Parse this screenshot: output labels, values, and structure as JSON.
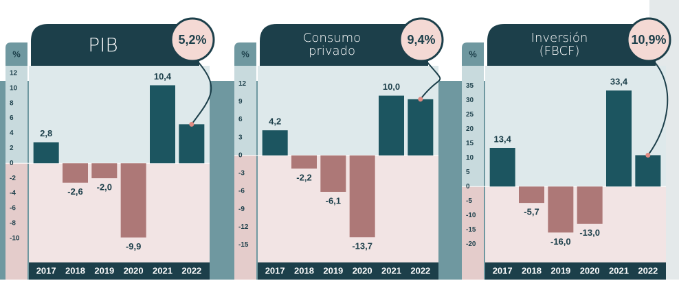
{
  "chart_data": [
    {
      "type": "bar",
      "title": "PIB",
      "unit": "%",
      "highlight": {
        "value": 5.2,
        "label": "5,2%"
      },
      "categories": [
        "2017",
        "2018",
        "2019",
        "2020",
        "2021",
        "2022"
      ],
      "values": [
        2.8,
        -2.6,
        -2.0,
        -9.9,
        10.4,
        5.2
      ],
      "value_labels": [
        "2,8",
        "-2,6",
        "-2,0",
        "-9,9",
        "10,4",
        null
      ],
      "colors": {
        "positive": "#1c5560",
        "negative": "#ad7877"
      },
      "ylim": [
        -12.5,
        13
      ],
      "yticks": [
        12,
        10,
        8,
        6,
        4,
        2,
        0,
        -2,
        -4,
        -6,
        -8,
        -10
      ]
    },
    {
      "type": "bar",
      "title": "Consumo privado",
      "unit": "%",
      "highlight": {
        "value": 9.4,
        "label": "9,4%"
      },
      "categories": [
        "2017",
        "2018",
        "2019",
        "2020",
        "2021",
        "2022"
      ],
      "values": [
        4.2,
        -2.2,
        -6.1,
        -13.7,
        10.0,
        9.4
      ],
      "value_labels": [
        "4,2",
        "-2,2",
        "-6,1",
        "-13,7",
        "10,0",
        null
      ],
      "colors": {
        "positive": "#1c5560",
        "negative": "#ad7877"
      },
      "ylim": [
        -17,
        15
      ],
      "yticks": [
        12,
        9,
        6,
        3,
        0,
        -3,
        -6,
        -9,
        -12,
        -15
      ]
    },
    {
      "type": "bar",
      "title": "Inversión (FBCF)",
      "unit": "%",
      "highlight": {
        "value": 10.9,
        "label": "10,9%"
      },
      "categories": [
        "2017",
        "2018",
        "2019",
        "2020",
        "2021",
        "2022"
      ],
      "values": [
        13.4,
        -5.7,
        -16.0,
        -13.0,
        33.4,
        10.9
      ],
      "value_labels": [
        "13,4",
        "-5,7",
        "-16,0",
        "-13,0",
        "33,4",
        null
      ],
      "colors": {
        "positive": "#1c5560",
        "negative": "#ad7877"
      },
      "ylim": [
        -24.5,
        42
      ],
      "yticks": [
        35,
        30,
        25,
        20,
        15,
        10,
        5,
        0,
        -5,
        -10,
        -15,
        -20
      ]
    }
  ]
}
